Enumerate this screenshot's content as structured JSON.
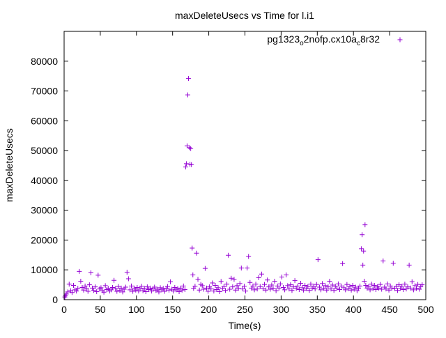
{
  "chart_data": {
    "type": "scatter",
    "title": "maxDeleteUsecs vs Time for l.i1",
    "xlabel": "Time(s)",
    "ylabel": "maxDeleteUsecs",
    "xlim": [
      0,
      500
    ],
    "ylim": [
      0,
      90000
    ],
    "x_ticks": [
      0,
      50,
      100,
      150,
      200,
      250,
      300,
      350,
      400,
      450,
      500
    ],
    "y_ticks": [
      0,
      10000,
      20000,
      30000,
      40000,
      50000,
      60000,
      70000,
      80000
    ],
    "grid": false,
    "legend_position": "top-right",
    "marker": "+",
    "series": [
      {
        "name": "pg1323_o2nofp.cx10a_c8r32",
        "legend_parts": [
          {
            "text": "pg1323",
            "sub": false
          },
          {
            "text": "o",
            "sub": true
          },
          {
            "text": "2nofp.cx10a",
            "sub": false
          },
          {
            "text": "c",
            "sub": true
          },
          {
            "text": "8r32",
            "sub": false
          }
        ],
        "color": "#9400d3",
        "points": [
          [
            1,
            900
          ],
          [
            2,
            1400
          ],
          [
            3,
            1900
          ],
          [
            5,
            2600
          ],
          [
            7,
            5200
          ],
          [
            9,
            3000
          ],
          [
            11,
            2400
          ],
          [
            13,
            4800
          ],
          [
            15,
            3300
          ],
          [
            17,
            2900
          ],
          [
            19,
            3800
          ],
          [
            21,
            9500
          ],
          [
            23,
            6200
          ],
          [
            25,
            4100
          ],
          [
            27,
            3200
          ],
          [
            29,
            4600
          ],
          [
            31,
            3700
          ],
          [
            33,
            2800
          ],
          [
            35,
            5000
          ],
          [
            37,
            9000
          ],
          [
            39,
            3900
          ],
          [
            41,
            3100
          ],
          [
            43,
            4300
          ],
          [
            45,
            2700
          ],
          [
            47,
            8200
          ],
          [
            49,
            3600
          ],
          [
            51,
            4000
          ],
          [
            53,
            3000
          ],
          [
            55,
            2500
          ],
          [
            57,
            4700
          ],
          [
            59,
            3400
          ],
          [
            61,
            3800
          ],
          [
            63,
            2900
          ],
          [
            65,
            3300
          ],
          [
            67,
            4100
          ],
          [
            69,
            6500
          ],
          [
            71,
            3700
          ],
          [
            73,
            2800
          ],
          [
            75,
            4400
          ],
          [
            77,
            3100
          ],
          [
            79,
            3900
          ],
          [
            81,
            2600
          ],
          [
            83,
            3500
          ],
          [
            85,
            4200
          ],
          [
            87,
            9200
          ],
          [
            89,
            7000
          ],
          [
            91,
            3300
          ],
          [
            93,
            4600
          ],
          [
            95,
            2800
          ],
          [
            97,
            3900
          ],
          [
            99,
            3200
          ],
          [
            101,
            4100
          ],
          [
            103,
            2900
          ],
          [
            105,
            3600
          ],
          [
            107,
            4500
          ],
          [
            109,
            3000
          ],
          [
            111,
            3800
          ],
          [
            113,
            2700
          ],
          [
            115,
            4300
          ],
          [
            117,
            3400
          ],
          [
            119,
            3900
          ],
          [
            121,
            2900
          ],
          [
            123,
            3600
          ],
          [
            125,
            4200
          ],
          [
            127,
            3100
          ],
          [
            129,
            3500
          ],
          [
            131,
            2600
          ],
          [
            133,
            4000
          ],
          [
            135,
            3300
          ],
          [
            137,
            3800
          ],
          [
            139,
            2800
          ],
          [
            141,
            3700
          ],
          [
            143,
            4400
          ],
          [
            145,
            3200
          ],
          [
            147,
            6000
          ],
          [
            149,
            3500
          ],
          [
            151,
            2900
          ],
          [
            153,
            4100
          ],
          [
            155,
            3300
          ],
          [
            157,
            3700
          ],
          [
            159,
            2700
          ],
          [
            161,
            3900
          ],
          [
            163,
            3200
          ],
          [
            165,
            4600
          ],
          [
            167,
            3400
          ],
          [
            168,
            44500
          ],
          [
            169,
            45600
          ],
          [
            170,
            51600
          ],
          [
            171,
            68700
          ],
          [
            172,
            74200
          ],
          [
            173,
            51000
          ],
          [
            174,
            45400
          ],
          [
            175,
            50700
          ],
          [
            176,
            45300
          ],
          [
            177,
            17300
          ],
          [
            178,
            8300
          ],
          [
            179,
            3800
          ],
          [
            181,
            4500
          ],
          [
            183,
            15600
          ],
          [
            185,
            6800
          ],
          [
            187,
            3200
          ],
          [
            189,
            5100
          ],
          [
            191,
            4700
          ],
          [
            193,
            3500
          ],
          [
            195,
            10500
          ],
          [
            197,
            3900
          ],
          [
            199,
            2800
          ],
          [
            201,
            4300
          ],
          [
            203,
            3600
          ],
          [
            205,
            5600
          ],
          [
            207,
            2900
          ],
          [
            209,
            4800
          ],
          [
            211,
            3400
          ],
          [
            213,
            4000
          ],
          [
            215,
            2700
          ],
          [
            217,
            6100
          ],
          [
            219,
            3700
          ],
          [
            221,
            4400
          ],
          [
            223,
            3100
          ],
          [
            225,
            5200
          ],
          [
            227,
            14900
          ],
          [
            229,
            3500
          ],
          [
            231,
            7200
          ],
          [
            233,
            4300
          ],
          [
            235,
            6800
          ],
          [
            237,
            3200
          ],
          [
            239,
            4700
          ],
          [
            241,
            3800
          ],
          [
            243,
            5400
          ],
          [
            245,
            10600
          ],
          [
            247,
            3600
          ],
          [
            249,
            4500
          ],
          [
            251,
            2900
          ],
          [
            253,
            10600
          ],
          [
            255,
            14500
          ],
          [
            257,
            5800
          ],
          [
            259,
            3900
          ],
          [
            261,
            4600
          ],
          [
            263,
            3300
          ],
          [
            265,
            5200
          ],
          [
            267,
            3600
          ],
          [
            269,
            7400
          ],
          [
            271,
            4400
          ],
          [
            273,
            8600
          ],
          [
            275,
            3700
          ],
          [
            277,
            5100
          ],
          [
            279,
            3200
          ],
          [
            281,
            6600
          ],
          [
            283,
            4300
          ],
          [
            285,
            3500
          ],
          [
            287,
            4900
          ],
          [
            289,
            3800
          ],
          [
            291,
            6200
          ],
          [
            293,
            3000
          ],
          [
            295,
            4600
          ],
          [
            297,
            3900
          ],
          [
            299,
            5300
          ],
          [
            301,
            7600
          ],
          [
            303,
            4100
          ],
          [
            305,
            3300
          ],
          [
            307,
            8300
          ],
          [
            309,
            4700
          ],
          [
            311,
            3600
          ],
          [
            313,
            5000
          ],
          [
            315,
            3100
          ],
          [
            317,
            4300
          ],
          [
            319,
            6400
          ],
          [
            321,
            3800
          ],
          [
            323,
            4600
          ],
          [
            325,
            3400
          ],
          [
            327,
            5500
          ],
          [
            329,
            4000
          ],
          [
            331,
            3200
          ],
          [
            333,
            4800
          ],
          [
            335,
            3700
          ],
          [
            337,
            4400
          ],
          [
            339,
            3100
          ],
          [
            341,
            5200
          ],
          [
            343,
            3900
          ],
          [
            345,
            4500
          ],
          [
            347,
            3600
          ],
          [
            349,
            5100
          ],
          [
            351,
            13400
          ],
          [
            353,
            4200
          ],
          [
            355,
            3300
          ],
          [
            357,
            5400
          ],
          [
            359,
            3800
          ],
          [
            361,
            4700
          ],
          [
            363,
            3200
          ],
          [
            365,
            4300
          ],
          [
            367,
            6200
          ],
          [
            369,
            3600
          ],
          [
            371,
            4900
          ],
          [
            373,
            3100
          ],
          [
            375,
            4500
          ],
          [
            377,
            3900
          ],
          [
            379,
            5300
          ],
          [
            381,
            3400
          ],
          [
            383,
            4600
          ],
          [
            385,
            12100
          ],
          [
            387,
            4000
          ],
          [
            389,
            3300
          ],
          [
            391,
            5100
          ],
          [
            393,
            3700
          ],
          [
            395,
            4400
          ],
          [
            397,
            3200
          ],
          [
            399,
            4800
          ],
          [
            401,
            3500
          ],
          [
            403,
            4200
          ],
          [
            405,
            3000
          ],
          [
            407,
            3800
          ],
          [
            409,
            4600
          ],
          [
            411,
            17100
          ],
          [
            412,
            21800
          ],
          [
            413,
            11600
          ],
          [
            414,
            16300
          ],
          [
            415,
            6200
          ],
          [
            416,
            25100
          ],
          [
            417,
            4800
          ],
          [
            419,
            3900
          ],
          [
            421,
            4400
          ],
          [
            423,
            3300
          ],
          [
            425,
            5200
          ],
          [
            427,
            3700
          ],
          [
            429,
            4800
          ],
          [
            431,
            3400
          ],
          [
            433,
            4300
          ],
          [
            435,
            3900
          ],
          [
            437,
            5100
          ],
          [
            439,
            3500
          ],
          [
            441,
            13000
          ],
          [
            443,
            4200
          ],
          [
            445,
            3600
          ],
          [
            447,
            5300
          ],
          [
            449,
            3200
          ],
          [
            451,
            4600
          ],
          [
            453,
            3900
          ],
          [
            455,
            12200
          ],
          [
            457,
            3700
          ],
          [
            459,
            4400
          ],
          [
            461,
            3100
          ],
          [
            463,
            5000
          ],
          [
            465,
            3800
          ],
          [
            467,
            4500
          ],
          [
            469,
            3400
          ],
          [
            471,
            5200
          ],
          [
            473,
            3600
          ],
          [
            475,
            4300
          ],
          [
            477,
            11600
          ],
          [
            479,
            3900
          ],
          [
            481,
            6000
          ],
          [
            483,
            3300
          ],
          [
            485,
            4700
          ],
          [
            487,
            3800
          ],
          [
            489,
            5100
          ],
          [
            491,
            3500
          ],
          [
            493,
            4400
          ],
          [
            495,
            5000
          ]
        ]
      }
    ]
  }
}
